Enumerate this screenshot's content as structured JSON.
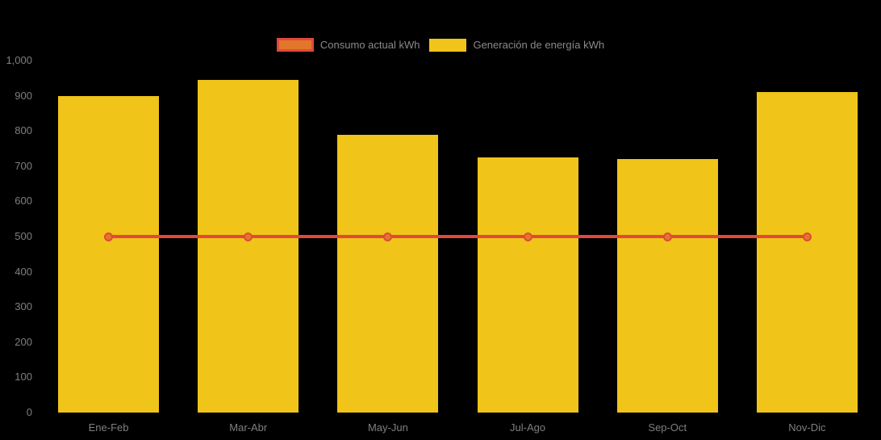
{
  "chart_data": {
    "type": "bar",
    "title": "",
    "xlabel": "",
    "ylabel": "",
    "categories": [
      "Ene-Feb",
      "Mar-Abr",
      "May-Jun",
      "Jul-Ago",
      "Sep-Oct",
      "Nov-Dic"
    ],
    "series": [
      {
        "name": "Consumo actual kWh",
        "type": "line",
        "values": [
          500,
          500,
          500,
          500,
          500,
          500
        ],
        "line_color": "#e0493a",
        "marker_fill": "#e2762b",
        "marker_stroke": "#e0493a"
      },
      {
        "name": "Generación de energía kWh",
        "type": "bar",
        "values": [
          900,
          945,
          790,
          725,
          720,
          910
        ],
        "color": "#f0c419"
      }
    ],
    "ylim": [
      0,
      1000
    ],
    "ytick_step": 100,
    "ytick_labels": [
      "0",
      "100",
      "200",
      "300",
      "400",
      "500",
      "600",
      "700",
      "800",
      "900",
      "1,000"
    ],
    "grid": false,
    "legend_position": "top-center",
    "background_color": "#000000",
    "axis_text_color": "#7f7f7f"
  }
}
